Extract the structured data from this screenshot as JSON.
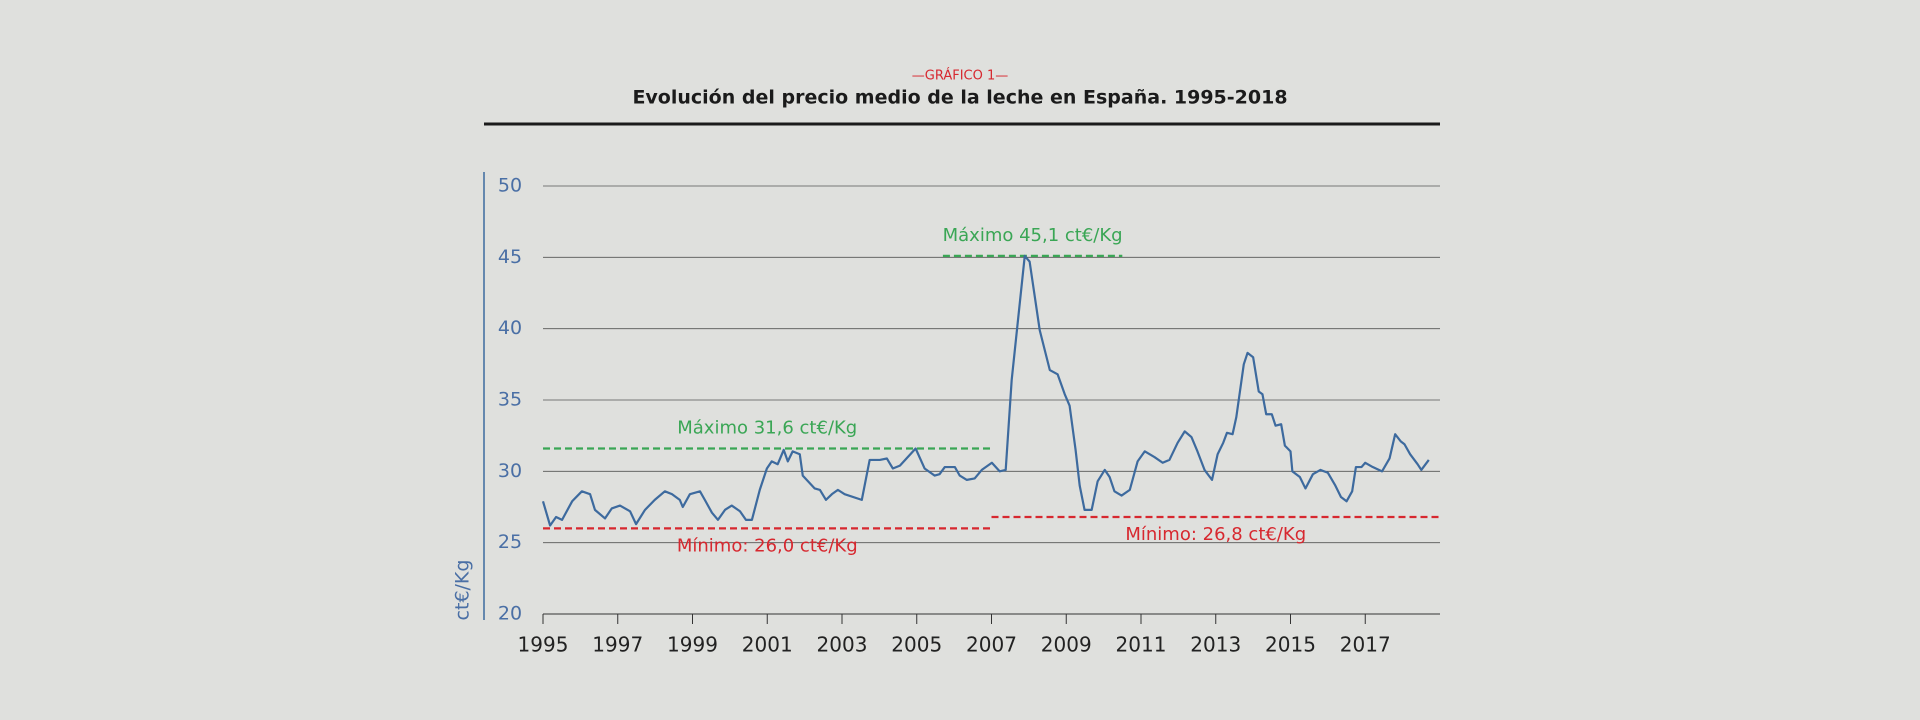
{
  "chart_data": {
    "type": "line",
    "supertitle": "—GRÁFICO 1—",
    "title": "Evolución del precio medio de la leche en España. 1995-2018",
    "ylabel": "ct€/Kg",
    "xlim": [
      1995,
      2019
    ],
    "xticks": [
      1995,
      1997,
      1999,
      2001,
      2003,
      2005,
      2007,
      2009,
      2011,
      2013,
      2015,
      2017
    ],
    "ylim": [
      20,
      50
    ],
    "yticks": [
      20,
      25,
      30,
      35,
      40,
      45,
      50
    ],
    "grid": true,
    "series": [
      {
        "color": "#3d6a9e",
        "x": [
          1995.0,
          1995.19,
          1995.35,
          1995.51,
          1995.78,
          1996.04,
          1996.26,
          1996.39,
          1996.66,
          1996.84,
          1997.06,
          1997.33,
          1997.49,
          1997.73,
          1997.99,
          1998.26,
          1998.45,
          1998.66,
          1998.74,
          1998.93,
          1999.2,
          1999.33,
          1999.52,
          1999.68,
          1999.87,
          2000.05,
          2000.27,
          2000.43,
          2000.59,
          2000.8,
          2000.99,
          2001.12,
          2001.28,
          2001.44,
          2001.55,
          2001.68,
          2001.87,
          2001.95,
          2002.27,
          2002.41,
          2002.57,
          2002.73,
          2002.89,
          2003.07,
          2003.53,
          2003.74,
          2004.01,
          2004.2,
          2004.36,
          2004.55,
          2004.97,
          2005.21,
          2005.48,
          2005.61,
          2005.75,
          2006.02,
          2006.15,
          2006.34,
          2006.55,
          2006.74,
          2007.01,
          2007.22,
          2007.38,
          2007.54,
          2007.89,
          2008.02,
          2008.29,
          2008.56,
          2008.77,
          2008.96,
          2009.09,
          2009.25,
          2009.36,
          2009.49,
          2009.68,
          2009.84,
          2010.03,
          2010.16,
          2010.29,
          2010.48,
          2010.7,
          2010.91,
          2011.1,
          2011.36,
          2011.58,
          2011.76,
          2011.98,
          2012.17,
          2012.35,
          2012.51,
          2012.7,
          2012.9,
          2013.05,
          2013.2,
          2013.3,
          2013.45,
          2013.55,
          2013.75,
          2013.85,
          2014.0,
          2014.15,
          2014.25,
          2014.35,
          2014.5,
          2014.6,
          2014.75,
          2014.85,
          2015.0,
          2015.05,
          2015.25,
          2015.4,
          2015.6,
          2015.8,
          2016.0,
          2016.2,
          2016.35,
          2016.5,
          2016.65,
          2016.75,
          2016.9,
          2017.0,
          2017.2,
          2017.45,
          2017.65,
          2017.8,
          2017.95,
          2018.05,
          2018.2,
          2018.4,
          2018.5,
          2018.7
        ],
        "values": [
          27.9,
          26.2,
          26.8,
          26.6,
          27.9,
          28.6,
          28.4,
          27.3,
          26.7,
          27.4,
          27.6,
          27.2,
          26.3,
          27.3,
          28.0,
          28.6,
          28.4,
          28.0,
          27.5,
          28.4,
          28.6,
          28.0,
          27.1,
          26.6,
          27.3,
          27.6,
          27.2,
          26.6,
          26.6,
          28.7,
          30.2,
          30.7,
          30.5,
          31.5,
          30.7,
          31.4,
          31.2,
          29.7,
          28.8,
          28.7,
          28.0,
          28.4,
          28.7,
          28.4,
          28.0,
          30.8,
          30.8,
          30.9,
          30.2,
          30.4,
          31.6,
          30.2,
          29.7,
          29.8,
          30.3,
          30.3,
          29.7,
          29.4,
          29.5,
          30.1,
          30.6,
          30.0,
          30.1,
          36.4,
          45.1,
          44.7,
          39.9,
          37.1,
          36.8,
          35.4,
          34.6,
          31.5,
          29.0,
          27.3,
          27.3,
          29.3,
          30.1,
          29.6,
          28.6,
          28.3,
          28.7,
          30.7,
          31.4,
          31.0,
          30.6,
          30.8,
          32.0,
          32.8,
          32.4,
          31.4,
          30.1,
          29.4,
          31.2,
          32.0,
          32.7,
          32.6,
          33.8,
          37.5,
          38.3,
          38.0,
          35.6,
          35.4,
          34.0,
          34.0,
          33.2,
          33.3,
          31.8,
          31.4,
          30.0,
          29.6,
          28.8,
          29.8,
          30.1,
          29.9,
          29.0,
          28.2,
          27.9,
          28.6,
          30.3,
          30.3,
          30.6,
          30.3,
          30.0,
          30.9,
          32.6,
          32.1,
          31.9,
          31.2,
          30.5,
          30.1,
          30.8
        ]
      }
    ],
    "annotations": [
      {
        "text": "Máximo 31,6 ct€/Kg",
        "value": 31.6,
        "x": [
          1995,
          2007
        ],
        "color": "#3aa655"
      },
      {
        "text": "Mínimo: 26,0 ct€/Kg",
        "value": 26.0,
        "x": [
          1995,
          2007
        ],
        "color": "#d7282f"
      },
      {
        "text": "Máximo 45,1 ct€/Kg",
        "value": 45.1,
        "x": [
          2005.7,
          2010.5
        ],
        "color": "#3aa655"
      },
      {
        "text": "Mínimo: 26,8 ct€/Kg",
        "value": 26.8,
        "x": [
          2007,
          2019
        ],
        "color": "#d7282f"
      }
    ]
  }
}
